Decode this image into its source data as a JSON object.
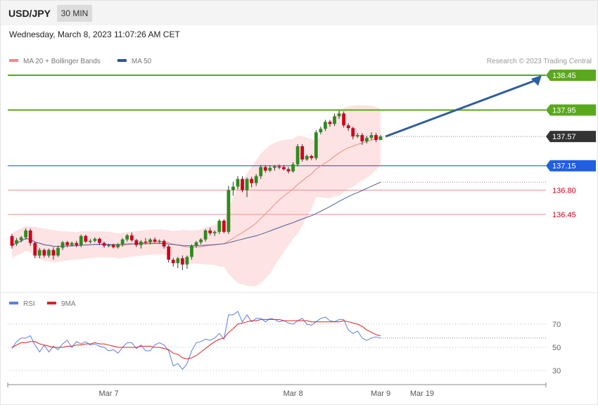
{
  "header": {
    "symbol": "USD/JPY",
    "interval_label": "30 MIN",
    "timestamp": "Wednesday, March 8, 2023 11:07:26 AM CET"
  },
  "colors": {
    "bull": "#2e8b1e",
    "bear": "#d0021b",
    "bollinger_fill": "#fde3e3",
    "ma20": "#f08a8a",
    "ma50": "#4a5e9a",
    "resistance": "#5aa81e",
    "support_blue": "#1f5fe0",
    "support_red": "#ee8f8f",
    "price_tag": "#333333",
    "arrow": "#2f5d9f",
    "rsi": "#5b7fe0",
    "rsi_ma": "#e02020"
  },
  "chart_data": [
    {
      "type": "candlestick",
      "legend": [
        {
          "name": "MA 20 + Bollinger Bands",
          "color": "#f08a8a",
          "icon": "legend-swatch"
        },
        {
          "name": "MA 50",
          "color": "#2e5598",
          "icon": "legend-swatch"
        }
      ],
      "attribution": "Research © 2023 Trading Central",
      "y_range": [
        135.9,
        138.55
      ],
      "levels": [
        {
          "value": 138.45,
          "label": "138.45",
          "kind": "resistance"
        },
        {
          "value": 137.95,
          "label": "137.95",
          "kind": "resistance"
        },
        {
          "value": 137.57,
          "label": "137.57",
          "kind": "current"
        },
        {
          "value": 137.15,
          "label": "137.15",
          "kind": "support_blue"
        },
        {
          "value": 136.8,
          "label": "136.80",
          "kind": "support_red"
        },
        {
          "value": 136.45,
          "label": "136.45",
          "kind": "support_red"
        }
      ],
      "target_arrow": {
        "from": 137.57,
        "to": 138.45
      },
      "candles": [
        [
          136.14,
          136.0,
          136.17,
          135.96
        ],
        [
          136.03,
          136.08,
          136.11,
          136.0
        ],
        [
          136.08,
          136.12,
          136.14,
          136.05
        ],
        [
          136.12,
          136.22,
          136.25,
          136.09
        ],
        [
          136.22,
          136.04,
          136.25,
          136.0
        ],
        [
          136.04,
          135.86,
          136.06,
          135.82
        ],
        [
          135.86,
          135.94,
          135.97,
          135.82
        ],
        [
          135.94,
          135.86,
          135.96,
          135.83
        ],
        [
          135.86,
          135.94,
          135.96,
          135.83
        ],
        [
          135.94,
          135.86,
          135.98,
          135.8
        ],
        [
          135.86,
          135.97,
          136.0,
          135.84
        ],
        [
          135.97,
          136.05,
          136.07,
          135.94
        ],
        [
          136.05,
          136.01,
          136.07,
          135.98
        ],
        [
          136.01,
          136.04,
          136.06,
          135.99
        ],
        [
          136.04,
          136.01,
          136.07,
          135.98
        ],
        [
          136.01,
          136.14,
          136.16,
          135.98
        ],
        [
          136.14,
          136.06,
          136.16,
          136.04
        ],
        [
          136.06,
          136.07,
          136.1,
          136.03
        ],
        [
          136.07,
          136.1,
          136.12,
          136.05
        ],
        [
          136.1,
          136.04,
          136.12,
          136.01
        ],
        [
          136.04,
          136.0,
          136.06,
          135.97
        ],
        [
          136.0,
          136.01,
          136.03,
          135.98
        ],
        [
          136.01,
          135.98,
          136.03,
          135.96
        ],
        [
          135.98,
          136.02,
          136.04,
          135.96
        ],
        [
          136.02,
          136.09,
          136.11,
          135.99
        ],
        [
          136.09,
          136.15,
          136.17,
          136.06
        ],
        [
          136.15,
          136.08,
          136.19,
          136.06
        ],
        [
          136.08,
          136.01,
          136.1,
          135.98
        ],
        [
          136.01,
          136.06,
          136.08,
          135.96
        ],
        [
          136.06,
          136.05,
          136.11,
          136.02
        ],
        [
          136.05,
          136.09,
          136.11,
          136.02
        ],
        [
          136.09,
          136.06,
          136.12,
          136.04
        ],
        [
          136.06,
          136.07,
          136.09,
          136.04
        ],
        [
          136.07,
          135.99,
          136.09,
          135.96
        ],
        [
          135.99,
          135.8,
          136.01,
          135.76
        ],
        [
          135.8,
          135.75,
          135.83,
          135.7
        ],
        [
          135.75,
          135.82,
          135.84,
          135.68
        ],
        [
          135.82,
          135.73,
          135.86,
          135.65
        ],
        [
          135.73,
          135.84,
          135.86,
          135.67
        ],
        [
          135.84,
          136.0,
          136.02,
          135.8
        ],
        [
          136.0,
          136.05,
          136.07,
          135.97
        ],
        [
          136.05,
          136.09,
          136.11,
          136.02
        ],
        [
          136.09,
          136.22,
          136.24,
          136.06
        ],
        [
          136.22,
          136.18,
          136.26,
          136.15
        ],
        [
          136.18,
          136.2,
          136.22,
          136.14
        ],
        [
          136.2,
          136.36,
          136.38,
          136.17
        ],
        [
          136.36,
          136.2,
          136.38,
          136.18
        ],
        [
          136.2,
          136.8,
          136.86,
          136.17
        ],
        [
          136.8,
          136.85,
          136.92,
          136.72
        ],
        [
          136.85,
          136.96,
          137.0,
          136.81
        ],
        [
          136.96,
          136.8,
          137.0,
          136.77
        ],
        [
          136.8,
          136.96,
          136.98,
          136.7
        ],
        [
          136.96,
          136.9,
          136.99,
          136.84
        ],
        [
          136.9,
          137.0,
          137.03,
          136.86
        ],
        [
          137.0,
          137.13,
          137.16,
          136.96
        ],
        [
          137.13,
          137.08,
          137.16,
          137.05
        ],
        [
          137.08,
          137.12,
          137.15,
          137.06
        ],
        [
          137.12,
          137.14,
          137.16,
          137.08
        ],
        [
          137.14,
          137.13,
          137.17,
          137.1
        ],
        [
          137.13,
          137.1,
          137.16,
          137.08
        ],
        [
          137.1,
          137.07,
          137.13,
          137.04
        ],
        [
          137.07,
          137.17,
          137.2,
          137.05
        ],
        [
          137.17,
          137.43,
          137.46,
          137.14
        ],
        [
          137.43,
          137.24,
          137.46,
          137.21
        ],
        [
          137.24,
          137.29,
          137.31,
          137.22
        ],
        [
          137.29,
          137.26,
          137.31,
          137.23
        ],
        [
          137.26,
          137.63,
          137.66,
          137.23
        ],
        [
          137.63,
          137.68,
          137.71,
          137.6
        ],
        [
          137.68,
          137.78,
          137.81,
          137.65
        ],
        [
          137.78,
          137.75,
          137.81,
          137.71
        ],
        [
          137.75,
          137.86,
          137.9,
          137.72
        ],
        [
          137.86,
          137.9,
          137.94,
          137.82
        ],
        [
          137.9,
          137.73,
          137.93,
          137.7
        ],
        [
          137.73,
          137.69,
          137.76,
          137.65
        ],
        [
          137.69,
          137.57,
          137.71,
          137.53
        ],
        [
          137.57,
          137.59,
          137.62,
          137.55
        ],
        [
          137.59,
          137.5,
          137.62,
          137.45
        ],
        [
          137.5,
          137.55,
          137.58,
          137.47
        ],
        [
          137.55,
          137.59,
          137.63,
          137.52
        ],
        [
          137.59,
          137.52,
          137.62,
          137.49
        ],
        [
          137.52,
          137.57,
          137.59,
          137.53
        ]
      ],
      "x_labels": [
        {
          "label": "Mar 7",
          "index": 21
        },
        {
          "label": "Mar 8",
          "index": 61
        },
        {
          "label": "Mar 9",
          "index": 80
        },
        {
          "label": "Mar 19",
          "index": 89
        }
      ]
    },
    {
      "type": "line",
      "legend": [
        {
          "name": "RSI",
          "color": "#5b7fe0",
          "icon": "legend-swatch"
        },
        {
          "name": "9MA",
          "color": "#e02020",
          "icon": "legend-swatch"
        }
      ],
      "y_range": [
        18,
        82
      ],
      "grid_levels": [
        70,
        50,
        30
      ],
      "rsi": [
        49,
        55,
        58,
        58,
        60,
        52,
        46,
        52,
        46,
        51,
        48,
        53,
        56,
        50,
        55,
        53,
        55,
        52,
        53,
        51,
        50,
        47,
        48,
        45,
        50,
        54,
        54,
        49,
        52,
        47,
        47,
        52,
        54,
        52,
        47,
        34,
        36,
        31,
        36,
        47,
        54,
        55,
        57,
        56,
        58,
        62,
        57,
        78,
        78,
        81,
        72,
        78,
        72,
        75,
        75,
        72,
        75,
        74,
        72,
        73,
        71,
        70,
        73,
        75,
        70,
        69,
        72,
        75,
        76,
        73,
        72,
        74,
        74,
        65,
        62,
        64,
        58,
        56,
        58,
        59,
        58
      ],
      "rsi_ma": [
        50,
        52,
        54,
        54,
        55,
        55,
        53,
        52,
        51,
        50,
        50,
        50,
        51,
        51,
        52,
        52,
        53,
        53,
        54,
        53,
        53,
        52,
        51,
        50,
        50,
        50,
        50,
        50,
        51,
        51,
        51,
        50,
        50,
        49,
        48,
        45,
        44,
        41,
        40,
        41,
        43,
        46,
        49,
        52,
        55,
        57,
        58,
        63,
        66,
        70,
        71,
        72,
        73,
        73,
        74,
        74,
        74,
        74,
        74,
        73,
        73,
        73,
        73,
        73,
        73,
        72,
        72,
        72,
        72,
        72,
        72,
        72,
        73,
        72,
        71,
        70,
        68,
        65,
        63,
        61,
        60
      ]
    }
  ]
}
